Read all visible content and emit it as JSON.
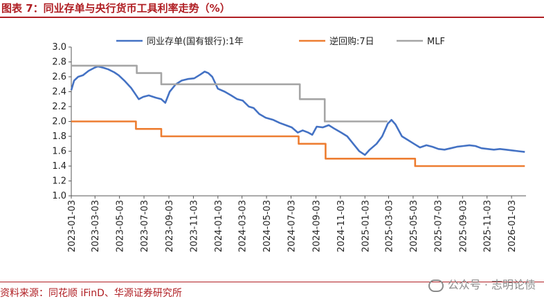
{
  "header": {
    "title": "图表 7：同业存单与央行货币工具利率走势（%）"
  },
  "footer": {
    "source": "资料来源：同花顺 iFinD、华源证券研究所",
    "watermark": "公众号 · 志明论债"
  },
  "colors": {
    "accent": "#b01e23",
    "ncd": "#4472c4",
    "reverse_repo": "#ed7d31",
    "mlf": "#a5a5a5"
  },
  "chart_data": {
    "type": "line",
    "title": "",
    "xlabel": "",
    "ylabel": "",
    "ylim": [
      1.0,
      3.0
    ],
    "yticks": [
      "3.0",
      "2.8",
      "2.6",
      "2.4",
      "2.2",
      "2.0",
      "1.8",
      "1.6",
      "1.4",
      "1.2",
      "1.0"
    ],
    "xticks": [
      "2023-01-03",
      "2023-03-03",
      "2023-05-03",
      "2023-07-03",
      "2023-09-03",
      "2023-11-03",
      "2024-01-03",
      "2024-03-03",
      "2024-05-03",
      "2024-07-03",
      "2024-09-03",
      "2024-11-03",
      "2025-01-03",
      "2025-03-03",
      "2025-05-03",
      "2025-07-03",
      "2025-09-03",
      "2025-11-03",
      "2026-01-03"
    ],
    "grid": false,
    "legend_position": "top",
    "series": [
      {
        "name": "同业存单(国有银行):1年",
        "color_key": "ncd",
        "points": [
          [
            "2023-01-03",
            2.42
          ],
          [
            "2023-01-10",
            2.55
          ],
          [
            "2023-01-20",
            2.6
          ],
          [
            "2023-02-01",
            2.62
          ],
          [
            "2023-02-15",
            2.68
          ],
          [
            "2023-03-01",
            2.72
          ],
          [
            "2023-03-10",
            2.74
          ],
          [
            "2023-03-25",
            2.72
          ],
          [
            "2023-04-05",
            2.7
          ],
          [
            "2023-04-20",
            2.66
          ],
          [
            "2023-05-01",
            2.62
          ],
          [
            "2023-05-15",
            2.55
          ],
          [
            "2023-06-01",
            2.45
          ],
          [
            "2023-06-10",
            2.38
          ],
          [
            "2023-06-20",
            2.3
          ],
          [
            "2023-07-01",
            2.33
          ],
          [
            "2023-07-15",
            2.35
          ],
          [
            "2023-08-01",
            2.32
          ],
          [
            "2023-08-15",
            2.3
          ],
          [
            "2023-08-25",
            2.25
          ],
          [
            "2023-09-05",
            2.4
          ],
          [
            "2023-09-20",
            2.5
          ],
          [
            "2023-10-05",
            2.55
          ],
          [
            "2023-10-20",
            2.57
          ],
          [
            "2023-11-05",
            2.58
          ],
          [
            "2023-11-20",
            2.63
          ],
          [
            "2023-12-01",
            2.67
          ],
          [
            "2023-12-10",
            2.65
          ],
          [
            "2023-12-20",
            2.6
          ],
          [
            "2024-01-03",
            2.44
          ],
          [
            "2024-01-20",
            2.4
          ],
          [
            "2024-02-05",
            2.35
          ],
          [
            "2024-02-20",
            2.3
          ],
          [
            "2024-03-05",
            2.28
          ],
          [
            "2024-03-20",
            2.2
          ],
          [
            "2024-04-01",
            2.18
          ],
          [
            "2024-04-15",
            2.1
          ],
          [
            "2024-05-01",
            2.05
          ],
          [
            "2024-05-20",
            2.02
          ],
          [
            "2024-06-05",
            1.98
          ],
          [
            "2024-06-20",
            1.95
          ],
          [
            "2024-07-05",
            1.92
          ],
          [
            "2024-07-20",
            1.85
          ],
          [
            "2024-08-01",
            1.88
          ],
          [
            "2024-08-15",
            1.85
          ],
          [
            "2024-08-25",
            1.82
          ],
          [
            "2024-09-05",
            1.93
          ],
          [
            "2024-09-20",
            1.92
          ],
          [
            "2024-10-05",
            1.95
          ],
          [
            "2024-10-20",
            1.9
          ],
          [
            "2024-11-05",
            1.85
          ],
          [
            "2024-11-20",
            1.8
          ],
          [
            "2024-12-05",
            1.7
          ],
          [
            "2024-12-20",
            1.6
          ],
          [
            "2025-01-03",
            1.55
          ],
          [
            "2025-01-15",
            1.62
          ],
          [
            "2025-02-01",
            1.7
          ],
          [
            "2025-02-15",
            1.8
          ],
          [
            "2025-03-01",
            1.97
          ],
          [
            "2025-03-10",
            2.02
          ],
          [
            "2025-03-20",
            1.96
          ],
          [
            "2025-04-05",
            1.8
          ],
          [
            "2025-04-20",
            1.75
          ],
          [
            "2025-05-05",
            1.7
          ],
          [
            "2025-05-20",
            1.65
          ],
          [
            "2025-06-05",
            1.68
          ],
          [
            "2025-06-20",
            1.66
          ],
          [
            "2025-07-05",
            1.63
          ],
          [
            "2025-07-20",
            1.62
          ],
          [
            "2025-08-05",
            1.64
          ],
          [
            "2025-08-20",
            1.66
          ],
          [
            "2025-09-05",
            1.67
          ],
          [
            "2025-09-20",
            1.68
          ],
          [
            "2025-10-05",
            1.67
          ],
          [
            "2025-10-20",
            1.64
          ],
          [
            "2025-11-05",
            1.63
          ],
          [
            "2025-11-20",
            1.62
          ],
          [
            "2025-12-05",
            1.63
          ],
          [
            "2025-12-20",
            1.62
          ],
          [
            "2026-01-05",
            1.61
          ],
          [
            "2026-01-20",
            1.6
          ],
          [
            "2026-02-05",
            1.59
          ]
        ]
      },
      {
        "name": "逆回购:7日",
        "color_key": "reverse_repo",
        "points": [
          [
            "2023-01-03",
            2.0
          ],
          [
            "2023-06-13",
            2.0
          ],
          [
            "2023-06-13",
            1.9
          ],
          [
            "2023-08-15",
            1.9
          ],
          [
            "2023-08-15",
            1.8
          ],
          [
            "2024-07-22",
            1.8
          ],
          [
            "2024-07-22",
            1.7
          ],
          [
            "2024-09-27",
            1.7
          ],
          [
            "2024-09-27",
            1.5
          ],
          [
            "2025-05-08",
            1.5
          ],
          [
            "2025-05-08",
            1.4
          ],
          [
            "2026-02-05",
            1.4
          ]
        ]
      },
      {
        "name": "MLF",
        "color_key": "mlf",
        "points": [
          [
            "2023-01-03",
            2.75
          ],
          [
            "2023-06-15",
            2.75
          ],
          [
            "2023-06-15",
            2.65
          ],
          [
            "2023-08-15",
            2.65
          ],
          [
            "2023-08-15",
            2.5
          ],
          [
            "2024-07-25",
            2.5
          ],
          [
            "2024-07-25",
            2.3
          ],
          [
            "2024-09-25",
            2.3
          ],
          [
            "2024-09-25",
            2.0
          ],
          [
            "2025-02-28",
            2.0
          ]
        ]
      }
    ]
  }
}
